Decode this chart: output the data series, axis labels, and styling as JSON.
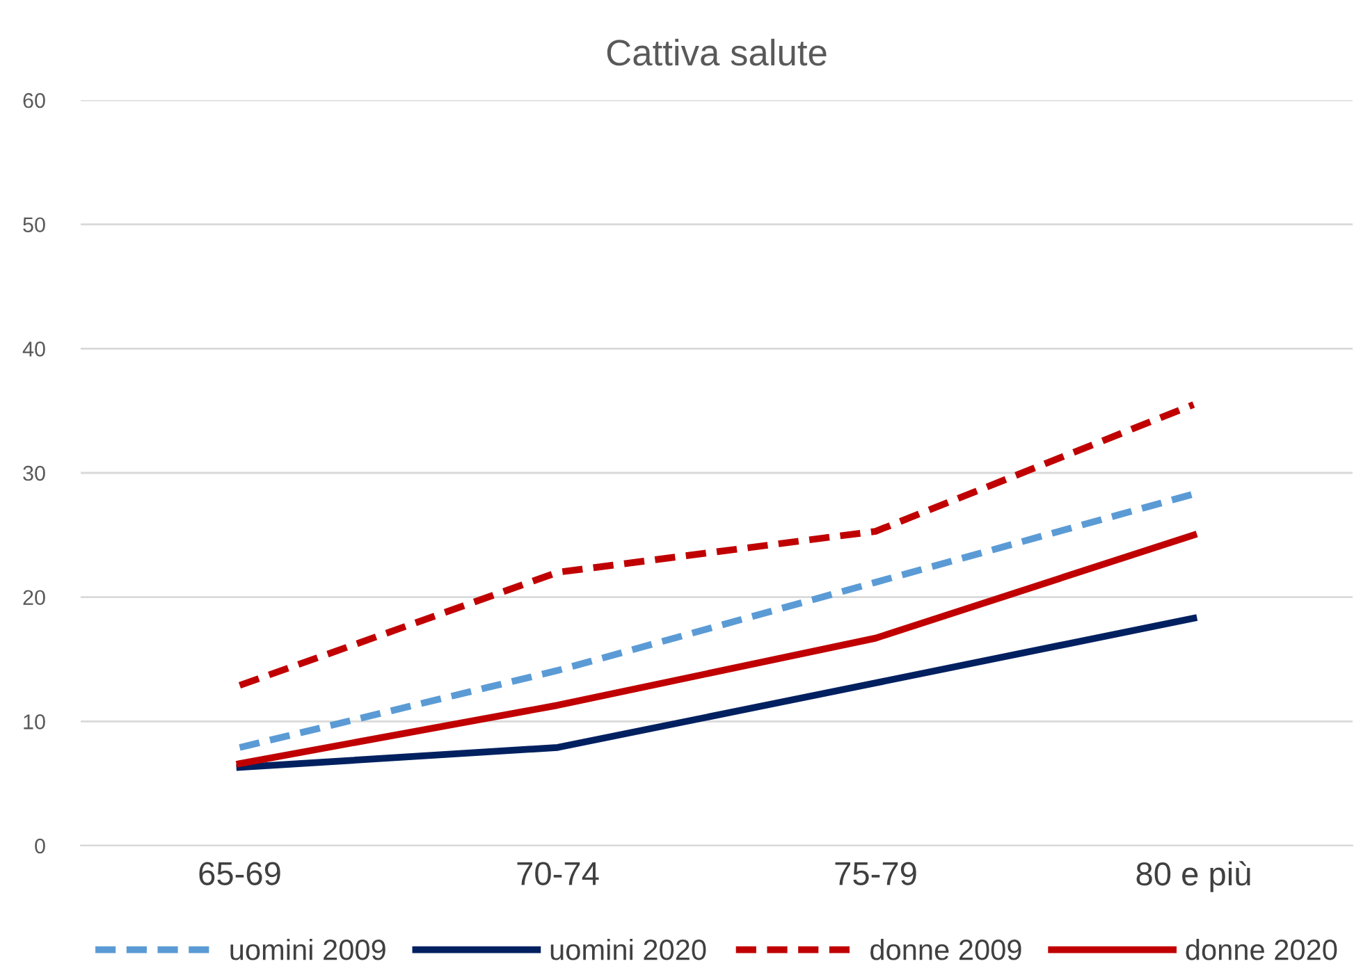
{
  "chart_data": {
    "type": "line",
    "title": "Cattiva salute",
    "categories": [
      "65-69",
      "70-74",
      "75-79",
      "80 e più"
    ],
    "series": [
      {
        "name": "uomini 2009",
        "color": "#5b9bd5",
        "line_style": "dashed",
        "values": [
          7.9,
          14.1,
          21.2,
          28.3
        ]
      },
      {
        "name": "uomini 2020",
        "color": "#002060",
        "line_style": "solid",
        "values": [
          6.3,
          7.9,
          13.1,
          18.3
        ]
      },
      {
        "name": "donne 2009",
        "color": "#c00000",
        "line_style": "dashed",
        "values": [
          12.9,
          22.0,
          25.3,
          35.5
        ]
      },
      {
        "name": "donne 2020",
        "color": "#c00000",
        "line_style": "solid",
        "values": [
          6.6,
          11.3,
          16.7,
          25.0
        ]
      }
    ],
    "ylim": [
      0,
      60
    ],
    "yticks": [
      0,
      10,
      20,
      30,
      40,
      50,
      60
    ],
    "grid": "y",
    "legend": "bottom",
    "marker": "none"
  }
}
